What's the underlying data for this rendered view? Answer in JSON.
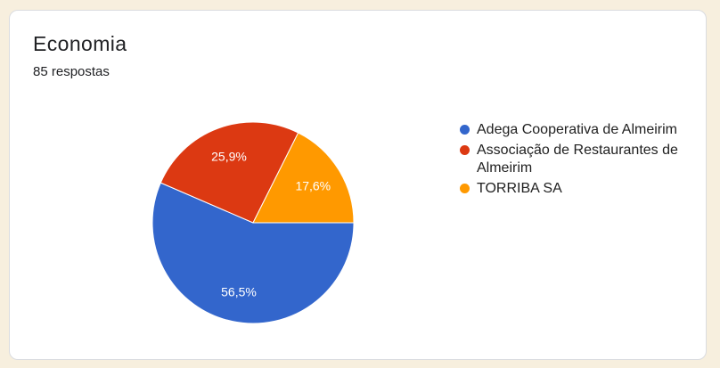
{
  "page": {
    "background_color": "#F7EFDE",
    "card_background": "#FFFFFF",
    "card_border_color": "#DADCE0"
  },
  "card": {
    "title": "Economia",
    "responses_count": "85 respostas"
  },
  "chart_data": {
    "type": "pie",
    "title": "Economia",
    "subtitle": "85 respostas",
    "categories": [
      "Adega Cooperativa de Almeirim",
      "Associação de Restaurantes de Almeirim",
      "TORRIBA SA"
    ],
    "values": [
      56.5,
      25.9,
      17.6
    ],
    "labels": [
      "56,5%",
      "25,9%",
      "17,6%"
    ],
    "colors": [
      "#3366CC",
      "#DC3912",
      "#FF9900"
    ],
    "label_color": "#FFFFFF",
    "start_angle_deg": 90,
    "legend_position": "right",
    "legend_text_color": "#212121"
  }
}
